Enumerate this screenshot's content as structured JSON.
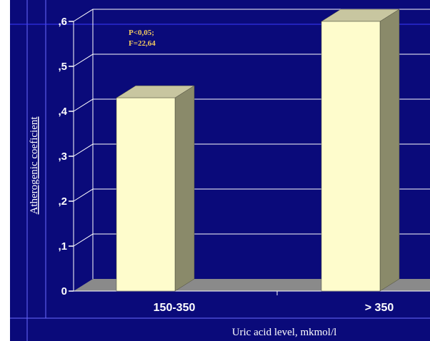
{
  "chart_data": {
    "type": "bar",
    "categories": [
      "150-350",
      "> 350"
    ],
    "values": [
      4.3,
      6.0
    ],
    "ylim": [
      0,
      6
    ],
    "y_ticks": [
      {
        "value": 0,
        "label": "0"
      },
      {
        "value": 1,
        "label": ",1"
      },
      {
        "value": 2,
        "label": ",2"
      },
      {
        "value": 3,
        "label": ",3"
      },
      {
        "value": 4,
        "label": ",4"
      },
      {
        "value": 5,
        "label": ",5"
      },
      {
        "value": 6,
        "label": ",6"
      }
    ],
    "ylabel": "Atherogenic coeficient",
    "xlabel": "Uric acid level, mkmol/l",
    "annotation_lines": [
      "P<0,05;",
      "F=22,64"
    ],
    "grid": true,
    "bar_front_color": "#fefccc",
    "bar_side_color": "#8a8a6a",
    "bar_top_color": "#c8c6a0",
    "background_color": "#0a0a7a",
    "floor_color": "#8a8a8a",
    "annotation_color": "#f0c860"
  }
}
